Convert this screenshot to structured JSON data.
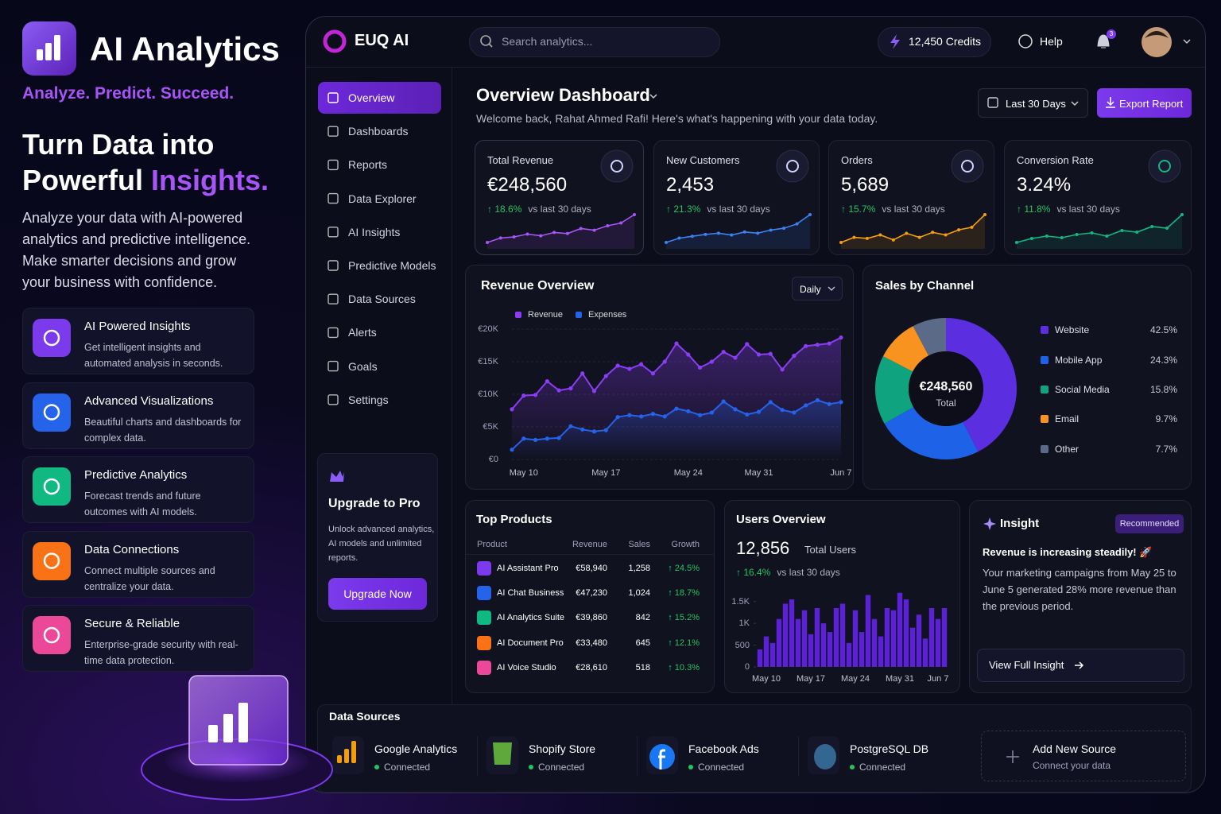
{
  "promo": {
    "title": "AI Analytics",
    "tagline": "Analyze. Predict. Succeed.",
    "headline_line1": "Turn Data into",
    "headline_line2": "Powerful",
    "headline_accent": "Insights.",
    "description": "Analyze your data with AI-powered analytics and predictive intelligence. Make smarter decisions and grow your business with confidence.",
    "features": [
      {
        "title": "AI Powered Insights",
        "text": "Get intelligent insights and automated analysis in seconds.",
        "color": "#7c3aed"
      },
      {
        "title": "Advanced Visualizations",
        "text": "Beautiful charts and dashboards for complex data.",
        "color": "#2563eb"
      },
      {
        "title": "Predictive Analytics",
        "text": "Forecast trends and future outcomes with AI models.",
        "color": "#10b981"
      },
      {
        "title": "Data Connections",
        "text": "Connect multiple sources and centralize your data.",
        "color": "#f97316"
      },
      {
        "title": "Secure & Reliable",
        "text": "Enterprise-grade security with real-time data protection.",
        "color": "#ec4899"
      }
    ]
  },
  "topbar": {
    "brand": "EUQ AI",
    "search_placeholder": "Search analytics...",
    "credits": "12,450 Credits",
    "help": "Help",
    "notification_count": "3"
  },
  "nav": {
    "items": [
      "Overview",
      "Dashboards",
      "Reports",
      "Data Explorer",
      "AI Insights",
      "Predictive Models",
      "Data Sources",
      "Alerts",
      "Goals",
      "Settings"
    ],
    "active": 0
  },
  "upgrade": {
    "title": "Upgrade to Pro",
    "text": "Unlock advanced analytics, AI models and unlimited reports.",
    "button": "Upgrade Now"
  },
  "header": {
    "title": "Overview Dashboard",
    "subtitle": "Welcome back, Rahat Ahmed Rafi! Here's what's happening with your data today.",
    "range": "Last 30 Days",
    "export": "Export Report"
  },
  "kpis": [
    {
      "label": "Total Revenue",
      "value": "€248,560",
      "change": "↑ 18.6%",
      "compare": "vs last 30 days",
      "color": "#a855f7",
      "spark": [
        20,
        28,
        30,
        35,
        32,
        38,
        36,
        45,
        42,
        50,
        55,
        70
      ]
    },
    {
      "label": "New Customers",
      "value": "2,453",
      "change": "↑ 21.3%",
      "compare": "vs last 30 days",
      "color": "#3b82f6",
      "spark": [
        15,
        22,
        25,
        28,
        30,
        27,
        32,
        30,
        35,
        38,
        45,
        60
      ]
    },
    {
      "label": "Orders",
      "value": "5,689",
      "change": "↑ 15.7%",
      "compare": "vs last 30 days",
      "color": "#f59e0b",
      "spark": [
        20,
        30,
        28,
        35,
        25,
        38,
        30,
        40,
        35,
        45,
        50,
        75
      ]
    },
    {
      "label": "Conversion Rate",
      "value": "3.24%",
      "change": "↑ 11.8%",
      "compare": "vs last 30 days",
      "color": "#10b981",
      "spark": [
        20,
        25,
        28,
        26,
        30,
        32,
        28,
        35,
        33,
        40,
        38,
        55
      ]
    }
  ],
  "revenue_chart": {
    "type": "line",
    "title": "Revenue Overview",
    "period": "Daily",
    "categories": [
      null,
      "May 10",
      null,
      null,
      null,
      null,
      null,
      null,
      "May 17",
      null,
      null,
      null,
      null,
      null,
      null,
      "May 24",
      null,
      null,
      null,
      null,
      null,
      "May 31",
      null,
      null,
      null,
      null,
      null,
      null,
      "Jun 7"
    ],
    "series": [
      {
        "name": "Revenue",
        "color": "#8b3cf7",
        "values": [
          7700,
          9800,
          9900,
          12000,
          10600,
          10900,
          13200,
          10500,
          12800,
          14400,
          13900,
          14600,
          13200,
          15000,
          17800,
          16100,
          14100,
          15000,
          16500,
          15600,
          17700,
          16100,
          16200,
          13800,
          15900,
          17400,
          17600,
          17800,
          18700
        ]
      },
      {
        "name": "Expenses",
        "color": "#2563eb",
        "values": [
          1500,
          3200,
          3000,
          3200,
          3300,
          5100,
          4600,
          4300,
          4500,
          6500,
          6800,
          6600,
          7000,
          6600,
          7800,
          7400,
          6800,
          7200,
          8900,
          7700,
          6900,
          7300,
          8800,
          7600,
          7200,
          8300,
          9100,
          8500,
          8800
        ]
      }
    ],
    "ylim": [
      0,
      20000
    ],
    "yticks": [
      {
        "value": 0,
        "label": "€0"
      },
      {
        "value": 5000,
        "label": "€5K"
      },
      {
        "value": 10000,
        "label": "€10K"
      },
      {
        "value": 15000,
        "label": "€15K"
      },
      {
        "value": 20000,
        "label": "€20K"
      }
    ]
  },
  "sales_chart": {
    "type": "pie",
    "title": "Sales by Channel",
    "center_value": "€248,560",
    "center_label": "Total",
    "categories": [
      "Website",
      "Mobile App",
      "Social Media",
      "Email",
      "Other"
    ],
    "values": [
      42.5,
      24.3,
      15.8,
      9.7,
      7.7
    ],
    "value_labels": [
      "42.5%",
      "24.3%",
      "15.8%",
      "9.7%",
      "7.7%"
    ],
    "colors": [
      "#5b2ee0",
      "#1e62e8",
      "#10a37f",
      "#f7931e",
      "#5b6a86"
    ]
  },
  "top_products": {
    "title": "Top Products",
    "columns": [
      "Product",
      "Revenue",
      "Sales",
      "Growth"
    ],
    "rows": [
      [
        "AI Assistant Pro",
        "€58,940",
        "1,258",
        "↑ 24.5%"
      ],
      [
        "AI Chat Business",
        "€47,230",
        "1,024",
        "↑ 18.7%"
      ],
      [
        "AI Analytics Suite",
        "€39,860",
        "842",
        "↑ 15.2%"
      ],
      [
        "AI Document Pro",
        "€33,480",
        "645",
        "↑ 12.1%"
      ],
      [
        "AI Voice Studio",
        "€28,610",
        "518",
        "↑ 10.3%"
      ]
    ],
    "icon_colors": [
      "#7c3aed",
      "#2563eb",
      "#10b981",
      "#f97316",
      "#ec4899"
    ]
  },
  "users": {
    "title": "Users Overview",
    "value": "12,856",
    "value_label": "Total Users",
    "change": "↑ 16.4%",
    "compare": "vs last 30 days",
    "chart": {
      "type": "bar",
      "color": "#5b21d6",
      "categories": [
        null,
        "May 10",
        null,
        null,
        null,
        null,
        null,
        null,
        "May 17",
        null,
        null,
        null,
        null,
        null,
        null,
        "May 24",
        null,
        null,
        null,
        null,
        null,
        null,
        "May 31",
        null,
        null,
        null,
        null,
        null,
        "Jun 7",
        null
      ],
      "values": [
        400,
        700,
        550,
        1100,
        1450,
        1550,
        1100,
        1300,
        750,
        1350,
        1000,
        800,
        1350,
        1450,
        550,
        1300,
        800,
        1650,
        1100,
        700,
        1350,
        1300,
        1700,
        1550,
        900,
        1200,
        650,
        1350,
        1100,
        1350
      ],
      "ylim": [
        0,
        1750
      ],
      "yticks": [
        0,
        500,
        {
          "value": 1000,
          "label": "1K"
        },
        {
          "value": 1500,
          "label": "1.5K"
        }
      ]
    }
  },
  "insight": {
    "title": "Insight",
    "badge": "Recommended",
    "headline": "Revenue is increasing steadily! 🚀",
    "text": "Your marketing campaigns from May 25 to June 5 generated 28% more revenue than the previous period.",
    "button": "View Full Insight"
  },
  "data_sources": {
    "title": "Data Sources",
    "items": [
      {
        "name": "Google Analytics",
        "status": "Connected"
      },
      {
        "name": "Shopify Store",
        "status": "Connected"
      },
      {
        "name": "Facebook Ads",
        "status": "Connected"
      },
      {
        "name": "PostgreSQL DB",
        "status": "Connected"
      }
    ],
    "add": {
      "title": "Add New Source",
      "text": "Connect your data"
    }
  }
}
